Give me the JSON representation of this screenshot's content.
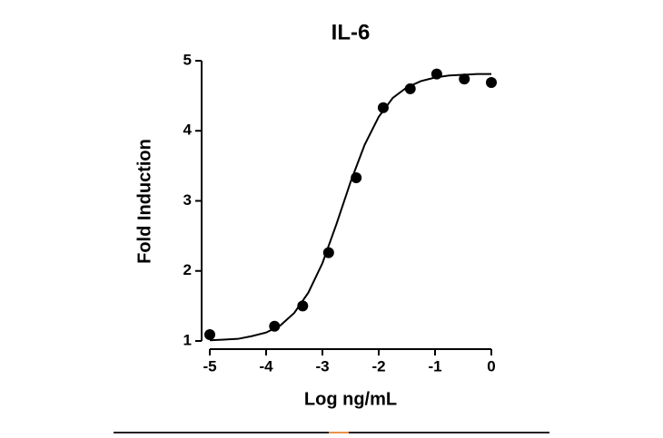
{
  "chart_data": {
    "type": "scatter",
    "title": "IL-6",
    "x_label": "Log ng/mL",
    "y_label": "Fold Induction",
    "xlim": [
      -5,
      0
    ],
    "xticks": [
      -5,
      -4,
      -3,
      -2,
      -1,
      0
    ],
    "ylim": [
      1,
      5
    ],
    "yticks": [
      1,
      2,
      3,
      4,
      5
    ],
    "color": "#000000",
    "x": [
      -5,
      -3.85,
      -3.35,
      -2.89,
      -2.4,
      -1.92,
      -1.44,
      -0.97,
      -0.48,
      0
    ],
    "values": [
      1.09,
      1.21,
      1.5,
      2.26,
      3.33,
      4.33,
      4.6,
      4.81,
      4.74,
      4.69
    ],
    "fit": {
      "type": "line",
      "color": "#000000",
      "x": [
        -5,
        -4.75,
        -4.5,
        -4.25,
        -4,
        -3.75,
        -3.5,
        -3.25,
        -3,
        -2.75,
        -2.5,
        -2.25,
        -2,
        -1.75,
        -1.5,
        -1.25,
        -1,
        -0.75,
        -0.5,
        -0.25,
        0
      ],
      "values": [
        1.01,
        1.02,
        1.03,
        1.07,
        1.12,
        1.22,
        1.4,
        1.69,
        2.11,
        2.67,
        3.27,
        3.8,
        4.2,
        4.47,
        4.62,
        4.71,
        4.76,
        4.79,
        4.8,
        4.81,
        4.81
      ]
    }
  }
}
